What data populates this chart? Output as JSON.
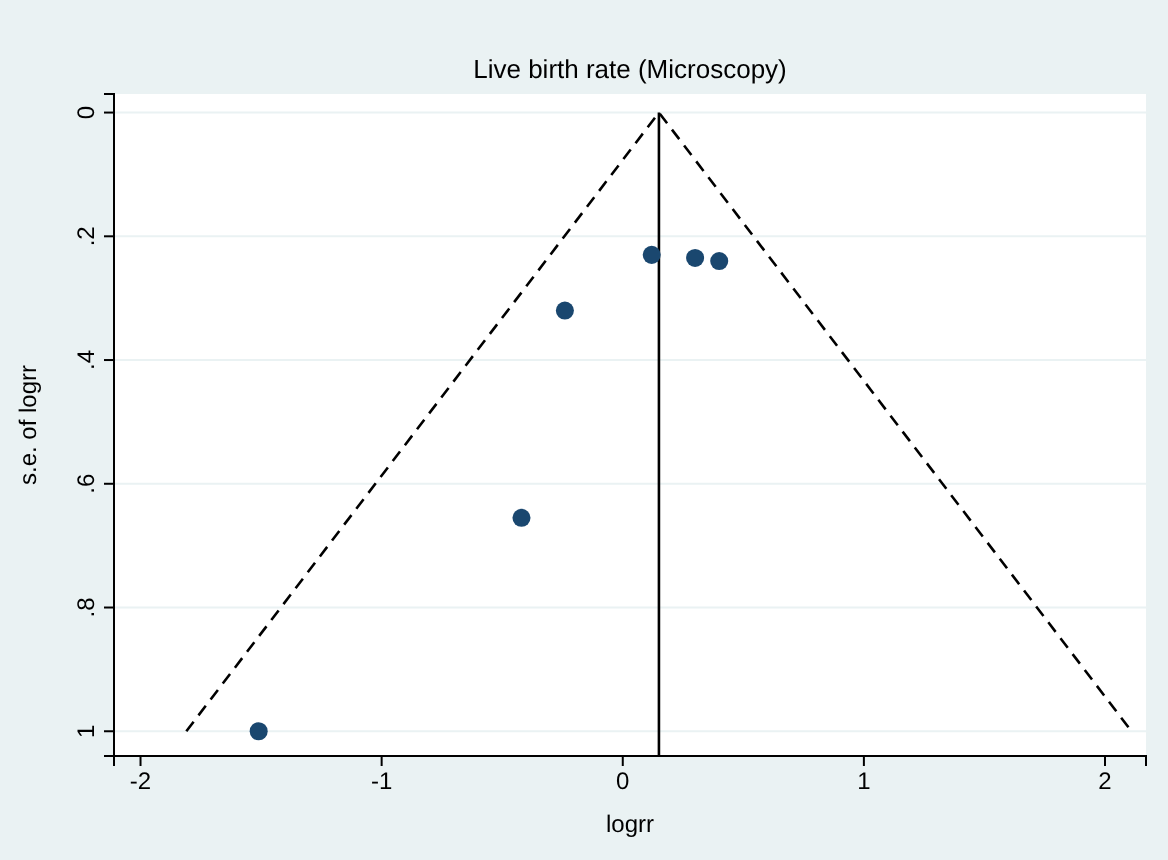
{
  "chart_data": {
    "type": "scatter",
    "title": "Live birth rate (Microscopy)",
    "xlabel": "logrr",
    "ylabel": "s.e. of logrr",
    "xlim": [
      -2.11,
      2.17
    ],
    "ylim": [
      1.04,
      -0.03
    ],
    "xticks": [
      -2,
      -1,
      0,
      1,
      2
    ],
    "yticks": [
      {
        "value": 0,
        "label": "0"
      },
      {
        "value": 0.2,
        "label": ".2"
      },
      {
        "value": 0.4,
        "label": ".4"
      },
      {
        "value": 0.6,
        "label": ".6"
      },
      {
        "value": 0.8,
        "label": ".8"
      },
      {
        "value": 1,
        "label": "1"
      }
    ],
    "grid": "y",
    "series": [
      {
        "color": "#1a476f",
        "marker": "circle",
        "x": [
          -1.51,
          -0.42,
          -0.24,
          0.12,
          0.3,
          0.4
        ],
        "values": [
          1.0,
          0.655,
          0.32,
          0.23,
          0.235,
          0.24
        ]
      },
      {
        "type": "line",
        "color": "#000000",
        "line_style": "dashed",
        "x": [
          -1.81,
          0.15,
          2.11
        ],
        "values": [
          1,
          0,
          1
        ]
      }
    ],
    "ref_lines": [
      {
        "axis": "x",
        "value": 0.15,
        "color": "#000000",
        "line_style": "solid"
      }
    ]
  }
}
